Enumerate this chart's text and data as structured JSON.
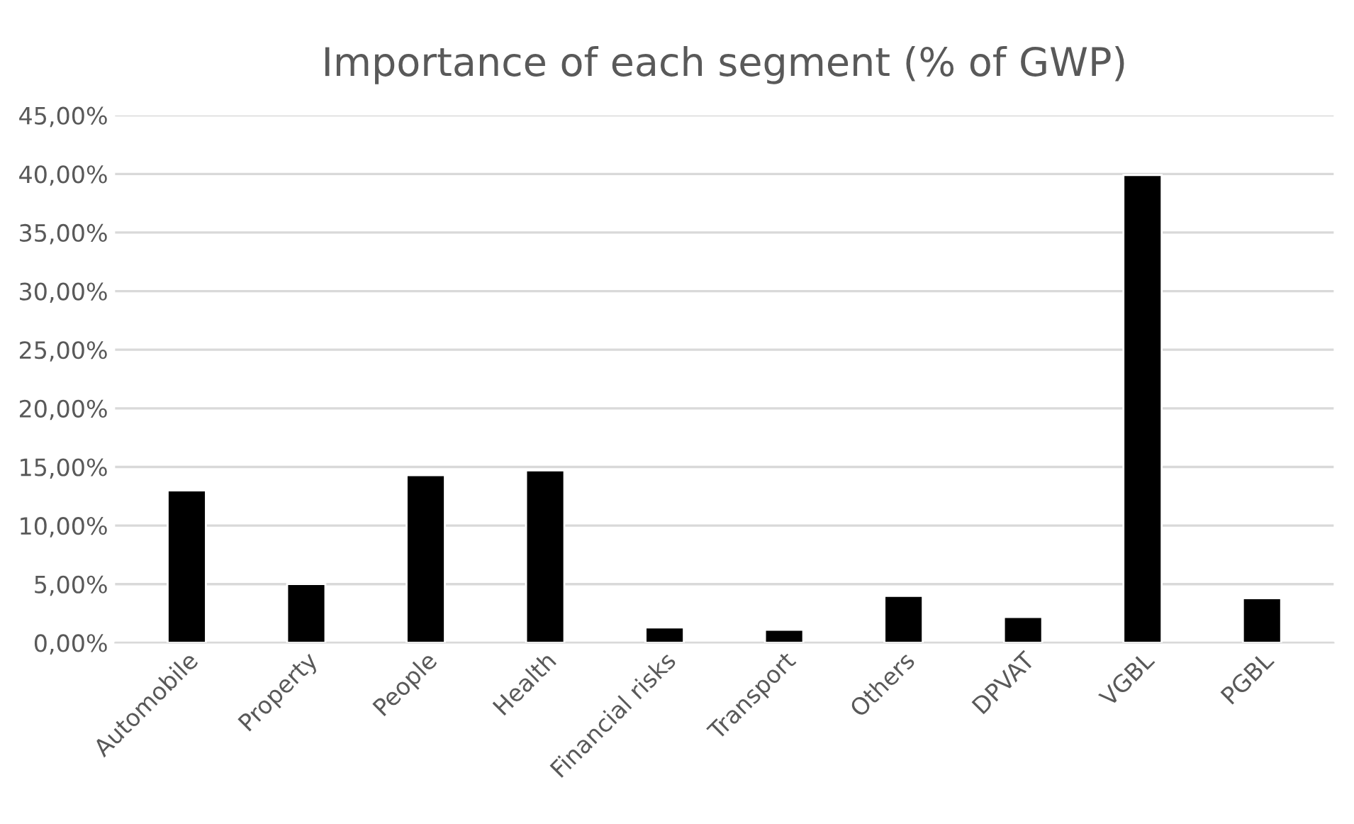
{
  "chart_data": {
    "type": "bar",
    "title": "Importance of each segment (% of GWP)",
    "categories": [
      "Automobile",
      "Property",
      "People",
      "Health",
      "Financial risks",
      "Transport",
      "Others",
      "DPVAT",
      "VGBL",
      "PGBL"
    ],
    "values": [
      13.0,
      5.0,
      14.3,
      14.7,
      1.3,
      1.1,
      4.0,
      2.2,
      39.9,
      3.8
    ],
    "color": "#000000",
    "ylim": [
      0,
      45
    ],
    "yticks": [
      {
        "value": 0,
        "label": "0,00%"
      },
      {
        "value": 5,
        "label": "5,00%"
      },
      {
        "value": 10,
        "label": "10,00%"
      },
      {
        "value": 15,
        "label": "15,00%"
      },
      {
        "value": 20,
        "label": "20,00%"
      },
      {
        "value": 25,
        "label": "25,00%"
      },
      {
        "value": 30,
        "label": "30,00%"
      },
      {
        "value": 35,
        "label": "35,00%"
      },
      {
        "value": 40,
        "label": "40,00%"
      },
      {
        "value": 45,
        "label": "45,00%"
      }
    ],
    "grid": "y",
    "legend": false
  }
}
